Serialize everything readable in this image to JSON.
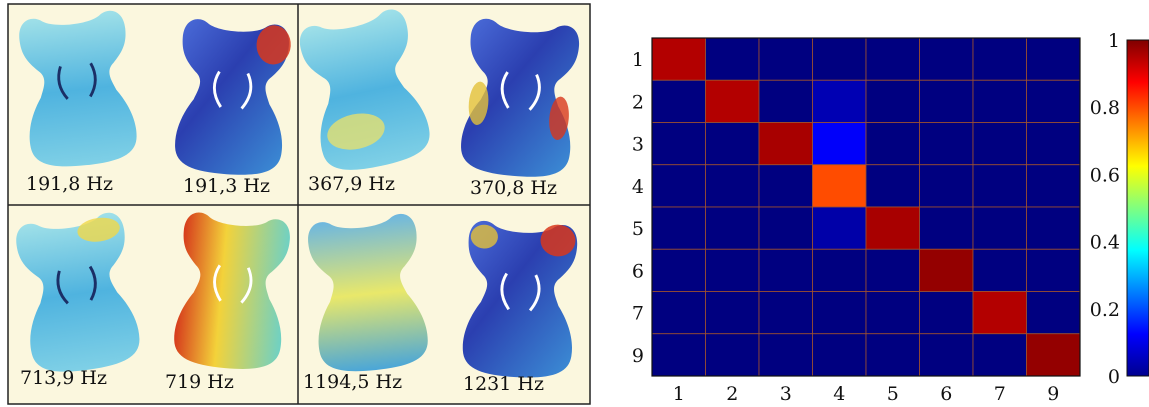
{
  "figure": {
    "panels": [
      {
        "labels": [
          "191,8 Hz",
          "191,3 Hz"
        ]
      },
      {
        "labels": [
          "367,9 Hz",
          "370,8 Hz"
        ]
      },
      {
        "labels": [
          "713,9 Hz",
          "719 Hz"
        ]
      },
      {
        "labels": [
          "1194,5 Hz",
          "1231 Hz"
        ]
      }
    ],
    "panel_background": "#fbf7de",
    "cell_border": "#222222"
  },
  "chart_data": {
    "type": "heatmap",
    "title": "",
    "xlabel": "",
    "ylabel": "",
    "x_categories": [
      "1",
      "2",
      "3",
      "4",
      "5",
      "6",
      "7",
      "9"
    ],
    "y_categories": [
      "1",
      "2",
      "3",
      "4",
      "5",
      "6",
      "7",
      "9"
    ],
    "values": [
      [
        0.95,
        0.0,
        0.0,
        0.0,
        0.0,
        0.0,
        0.0,
        0.0
      ],
      [
        0.0,
        0.95,
        0.0,
        0.05,
        0.0,
        0.0,
        0.0,
        0.0
      ],
      [
        0.0,
        0.0,
        0.96,
        0.12,
        0.0,
        0.0,
        0.0,
        0.0
      ],
      [
        0.0,
        0.0,
        0.0,
        0.8,
        0.0,
        0.0,
        0.0,
        0.0
      ],
      [
        0.0,
        0.0,
        0.0,
        0.04,
        0.96,
        0.0,
        0.0,
        0.0
      ],
      [
        0.0,
        0.0,
        0.0,
        0.0,
        0.0,
        0.98,
        0.0,
        0.0
      ],
      [
        0.0,
        0.0,
        0.0,
        0.0,
        0.0,
        0.0,
        0.95,
        0.0
      ],
      [
        0.0,
        0.0,
        0.0,
        0.0,
        0.0,
        0.0,
        0.0,
        0.98
      ]
    ],
    "colorbar": {
      "range": [
        0,
        1
      ],
      "ticks": [
        "0",
        "0.2",
        "0.4",
        "0.6",
        "0.8",
        "1"
      ],
      "colormap": "jet"
    },
    "cell_border_color": "#a0522d"
  }
}
